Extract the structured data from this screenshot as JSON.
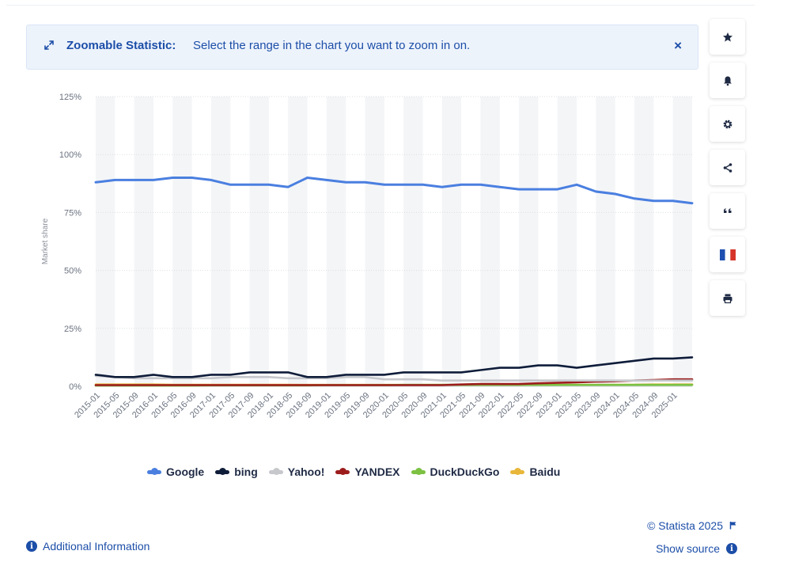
{
  "banner": {
    "title": "Zoomable Statistic:",
    "text": "Select the range in the chart you want to zoom in on.",
    "close_label": "×"
  },
  "toolbar": {
    "icons": [
      "star-icon",
      "bell-icon",
      "gear-icon",
      "share-icon",
      "quote-icon",
      "france-flag-icon",
      "print-icon"
    ]
  },
  "footer": {
    "additional_info": "Additional Information",
    "copyright": "© Statista 2025",
    "show_source": "Show source",
    "info_glyph": "i"
  },
  "colors": {
    "Google": "#4a7fe0",
    "bing": "#0f1d3a",
    "Yahoo!": "#c6c8cc",
    "YANDEX": "#9c1c1c",
    "DuckDuckGo": "#7cc142",
    "Baidu": "#e8b73a",
    "accent": "#1c4ea8"
  },
  "chart_data": {
    "type": "line",
    "ylabel": "Market share",
    "ylim": [
      0,
      125
    ],
    "yticks": [
      0,
      25,
      50,
      75,
      100,
      125
    ],
    "ytick_labels": [
      "0%",
      "25%",
      "50%",
      "75%",
      "100%",
      "125%"
    ],
    "xtick_labels": [
      "2015-01",
      "2015-05",
      "2015-09",
      "2016-01",
      "2016-05",
      "2016-09",
      "2017-01",
      "2017-05",
      "2017-09",
      "2018-01",
      "2018-05",
      "2018-09",
      "2019-01",
      "2019-05",
      "2019-09",
      "2020-01",
      "2020-05",
      "2020-09",
      "2021-01",
      "2021-05",
      "2021-09",
      "2022-01",
      "2022-05",
      "2022-09",
      "2023-01",
      "2023-05",
      "2023-09",
      "2024-01",
      "2024-05",
      "2024-09",
      "2025-01"
    ],
    "x": [
      "2015-01",
      "2015-05",
      "2015-09",
      "2016-01",
      "2016-05",
      "2016-09",
      "2017-01",
      "2017-05",
      "2017-09",
      "2018-01",
      "2018-05",
      "2018-09",
      "2019-01",
      "2019-05",
      "2019-09",
      "2020-01",
      "2020-05",
      "2020-09",
      "2021-01",
      "2021-05",
      "2021-09",
      "2022-01",
      "2022-05",
      "2022-09",
      "2023-01",
      "2023-05",
      "2023-09",
      "2024-01",
      "2024-05",
      "2024-09",
      "2025-01",
      "2025-03"
    ],
    "series": [
      {
        "name": "Google",
        "values": [
          88,
          89,
          89,
          89,
          90,
          90,
          89,
          87,
          87,
          87,
          86,
          90,
          89,
          88,
          88,
          87,
          87,
          87,
          86,
          87,
          87,
          86,
          85,
          85,
          85,
          87,
          84,
          83,
          81,
          80,
          80,
          79
        ]
      },
      {
        "name": "bing",
        "values": [
          5,
          4,
          4,
          5,
          4,
          4,
          5,
          5,
          6,
          6,
          6,
          4,
          4,
          5,
          5,
          5,
          6,
          6,
          6,
          6,
          7,
          8,
          8,
          9,
          9,
          8,
          9,
          10,
          11,
          12,
          12,
          12.5
        ]
      },
      {
        "name": "Yahoo!",
        "values": [
          4.5,
          4,
          3.5,
          3.5,
          3.5,
          3.5,
          3.5,
          4,
          4,
          4,
          3.5,
          3.5,
          3.5,
          4,
          4,
          3,
          3,
          3,
          2.5,
          2.5,
          2.5,
          2.5,
          2.5,
          2.5,
          2.5,
          2.5,
          2.5,
          2.5,
          2.5,
          2.5,
          2.5,
          2.5
        ]
      },
      {
        "name": "YANDEX",
        "values": [
          0.5,
          0.5,
          0.5,
          0.5,
          0.5,
          0.5,
          0.5,
          0.5,
          0.5,
          0.5,
          0.5,
          0.5,
          0.5,
          0.5,
          0.5,
          0.5,
          0.5,
          0.5,
          0.5,
          0.8,
          1,
          1,
          1,
          1.3,
          1.5,
          1.7,
          2,
          2.2,
          2.5,
          2.7,
          3,
          3
        ]
      },
      {
        "name": "DuckDuckGo",
        "values": [
          0.3,
          0.3,
          0.3,
          0.3,
          0.3,
          0.3,
          0.4,
          0.4,
          0.4,
          0.4,
          0.4,
          0.4,
          0.5,
          0.5,
          0.5,
          0.5,
          0.6,
          0.6,
          0.6,
          0.6,
          0.6,
          0.6,
          0.6,
          0.6,
          0.6,
          0.6,
          0.6,
          0.6,
          0.6,
          0.6,
          0.6,
          0.6
        ]
      },
      {
        "name": "Baidu",
        "values": [
          0.8,
          0.8,
          0.8,
          0.8,
          0.7,
          0.7,
          0.7,
          0.7,
          0.7,
          0.7,
          0.7,
          0.6,
          0.6,
          0.6,
          0.6,
          0.6,
          0.6,
          0.6,
          0.6,
          0.6,
          0.6,
          0.6,
          0.6,
          0.6,
          0.6,
          0.6,
          0.6,
          0.7,
          0.7,
          0.8,
          0.8,
          0.8
        ]
      }
    ],
    "legend_position": "bottom",
    "grid": true
  }
}
